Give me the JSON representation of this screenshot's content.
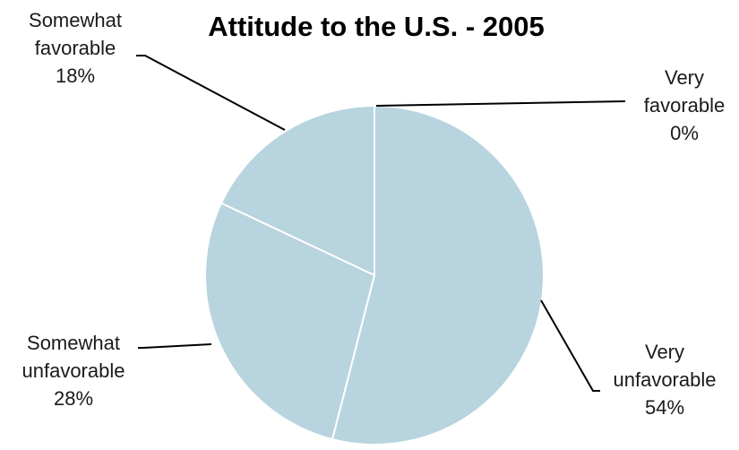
{
  "chart_data": {
    "type": "pie",
    "title": "Attitude to the U.S. - 2005",
    "categories": [
      "Very favorable",
      "Very unfavorable",
      "Somewhat unfavorable",
      "Somewhat favorable"
    ],
    "values": [
      0,
      54,
      28,
      18
    ],
    "value_labels": [
      "0%",
      "54%",
      "28%",
      "18%"
    ],
    "label_lines": [
      [
        "Very",
        "favorable"
      ],
      [
        "Very",
        "unfavorable"
      ],
      [
        "Somewhat",
        "unfavorable"
      ],
      [
        "Somewhat",
        "favorable"
      ]
    ],
    "slice_color": "#b8d4de",
    "border_color": "#ffffff",
    "leader_color": "#000000",
    "start_angle": "12 o'clock",
    "direction": "clockwise",
    "legend": "none"
  }
}
